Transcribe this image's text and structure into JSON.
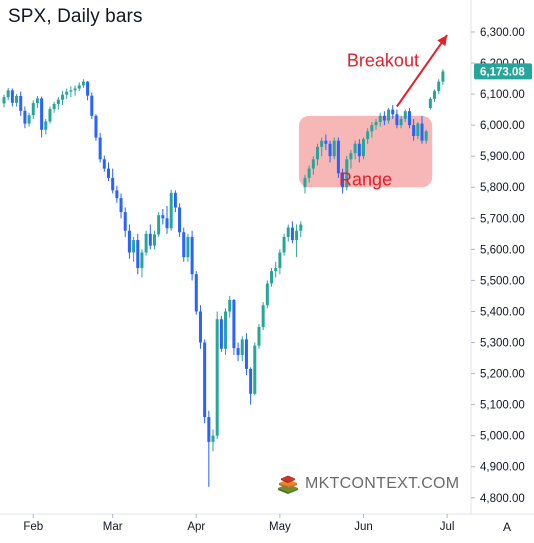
{
  "header": {
    "title": "SPX, Daily bars"
  },
  "brand": {
    "name": "MKTCONTEXT.COM"
  },
  "chart_data": {
    "type": "candlestick",
    "ylim": [
      4780,
      6345
    ],
    "y_ticks": [
      "4,800.00",
      "4,900.00",
      "5,000.00",
      "5,100.00",
      "5,200.00",
      "5,300.00",
      "5,400.00",
      "5,500.00",
      "5,600.00",
      "5,700.00",
      "5,800.00",
      "5,900.00",
      "6,000.00",
      "6,100.00",
      "6,200.00",
      "6,300.00"
    ],
    "x_ticks": [
      {
        "label": "Feb",
        "index": 7
      },
      {
        "label": "Mar",
        "index": 26
      },
      {
        "label": "Apr",
        "index": 46
      },
      {
        "label": "May",
        "index": 66
      },
      {
        "label": "Jun",
        "index": 86
      },
      {
        "label": "Jul",
        "index": 106
      }
    ],
    "last_price": {
      "label": "6,173.08",
      "value": 6173.08
    },
    "axis_button": "A",
    "annotations": {
      "range_label": "Range",
      "range_box": {
        "i0": 72,
        "i1": 101,
        "p_low": 5800,
        "p_high": 6030
      },
      "breakout_label": "Breakout",
      "breakout_arrow": {
        "from_i": 94,
        "from_p": 6060,
        "to_i": 106,
        "to_p": 6290
      }
    },
    "colors": {
      "up": "#26a69a",
      "down": "#2962ff",
      "range_fill": "#f6a3a3",
      "annotation": "#e5202a",
      "axis_text": "#131722",
      "grid": "#f0f3fa"
    },
    "ohlc": [
      [
        6070,
        6098,
        6057,
        6090
      ],
      [
        6090,
        6120,
        6080,
        6112
      ],
      [
        6112,
        6118,
        6060,
        6072
      ],
      [
        6072,
        6100,
        6060,
        6094
      ],
      [
        6094,
        6108,
        6030,
        6046
      ],
      [
        6046,
        6060,
        5990,
        6005
      ],
      [
        6005,
        6040,
        5995,
        6032
      ],
      [
        6032,
        6080,
        6020,
        6071
      ],
      [
        6071,
        6094,
        6055,
        6086
      ],
      [
        6086,
        6092,
        5960,
        5985
      ],
      [
        5985,
        6020,
        5970,
        6012
      ],
      [
        6012,
        6060,
        6005,
        6052
      ],
      [
        6052,
        6075,
        6040,
        6068
      ],
      [
        6068,
        6090,
        6050,
        6082
      ],
      [
        6082,
        6110,
        6065,
        6098
      ],
      [
        6098,
        6118,
        6085,
        6108
      ],
      [
        6108,
        6125,
        6090,
        6112
      ],
      [
        6112,
        6128,
        6095,
        6118
      ],
      [
        6118,
        6138,
        6110,
        6128
      ],
      [
        6128,
        6148,
        6120,
        6140
      ],
      [
        6140,
        6142,
        6080,
        6095
      ],
      [
        6095,
        6105,
        6020,
        6030
      ],
      [
        6030,
        6035,
        5950,
        5960
      ],
      [
        5960,
        5975,
        5880,
        5890
      ],
      [
        5890,
        5902,
        5850,
        5860
      ],
      [
        5860,
        5880,
        5820,
        5830
      ],
      [
        5830,
        5860,
        5780,
        5790
      ],
      [
        5790,
        5805,
        5750,
        5765
      ],
      [
        5765,
        5780,
        5700,
        5720
      ],
      [
        5720,
        5735,
        5640,
        5660
      ],
      [
        5660,
        5680,
        5570,
        5590
      ],
      [
        5590,
        5640,
        5560,
        5630
      ],
      [
        5630,
        5650,
        5520,
        5540
      ],
      [
        5540,
        5600,
        5510,
        5590
      ],
      [
        5590,
        5660,
        5580,
        5650
      ],
      [
        5650,
        5680,
        5600,
        5612
      ],
      [
        5612,
        5660,
        5600,
        5648
      ],
      [
        5648,
        5720,
        5640,
        5710
      ],
      [
        5710,
        5730,
        5680,
        5700
      ],
      [
        5700,
        5740,
        5650,
        5668
      ],
      [
        5668,
        5792,
        5660,
        5782
      ],
      [
        5782,
        5790,
        5720,
        5735
      ],
      [
        5735,
        5748,
        5640,
        5655
      ],
      [
        5655,
        5670,
        5560,
        5575
      ],
      [
        5575,
        5650,
        5560,
        5640
      ],
      [
        5640,
        5660,
        5500,
        5520
      ],
      [
        5520,
        5530,
        5390,
        5400
      ],
      [
        5400,
        5420,
        5280,
        5300
      ],
      [
        5300,
        5310,
        5040,
        5060
      ],
      [
        5060,
        5080,
        4835,
        4980
      ],
      [
        4980,
        5020,
        4950,
        5000
      ],
      [
        5000,
        5400,
        4990,
        5375
      ],
      [
        5375,
        5385,
        5270,
        5280
      ],
      [
        5280,
        5410,
        5260,
        5400
      ],
      [
        5400,
        5450,
        5380,
        5437
      ],
      [
        5437,
        5440,
        5260,
        5282
      ],
      [
        5282,
        5300,
        5240,
        5260
      ],
      [
        5260,
        5320,
        5240,
        5310
      ],
      [
        5310,
        5330,
        5195,
        5215
      ],
      [
        5215,
        5220,
        5100,
        5135
      ],
      [
        5135,
        5300,
        5130,
        5290
      ],
      [
        5290,
        5360,
        5280,
        5350
      ],
      [
        5350,
        5430,
        5340,
        5420
      ],
      [
        5420,
        5500,
        5410,
        5490
      ],
      [
        5490,
        5540,
        5480,
        5530
      ],
      [
        5530,
        5560,
        5510,
        5540
      ],
      [
        5540,
        5600,
        5520,
        5590
      ],
      [
        5590,
        5650,
        5580,
        5640
      ],
      [
        5640,
        5680,
        5625,
        5670
      ],
      [
        5670,
        5690,
        5620,
        5630
      ],
      [
        5630,
        5680,
        5575,
        5660
      ],
      [
        5660,
        5690,
        5640,
        5680
      ],
      [
        5800,
        5840,
        5780,
        5830
      ],
      [
        5830,
        5870,
        5815,
        5860
      ],
      [
        5860,
        5900,
        5840,
        5890
      ],
      [
        5890,
        5940,
        5870,
        5930
      ],
      [
        5930,
        5960,
        5900,
        5950
      ],
      [
        5950,
        5970,
        5920,
        5940
      ],
      [
        5940,
        5950,
        5880,
        5900
      ],
      [
        5900,
        5960,
        5890,
        5950
      ],
      [
        5950,
        5960,
        5830,
        5845
      ],
      [
        5845,
        5860,
        5780,
        5800
      ],
      [
        5800,
        5900,
        5790,
        5890
      ],
      [
        5890,
        5920,
        5860,
        5910
      ],
      [
        5910,
        5950,
        5890,
        5940
      ],
      [
        5940,
        5955,
        5880,
        5900
      ],
      [
        5900,
        5960,
        5890,
        5955
      ],
      [
        5955,
        5990,
        5940,
        5980
      ],
      [
        5980,
        6010,
        5960,
        6000
      ],
      [
        6000,
        6020,
        5985,
        6010
      ],
      [
        6010,
        6040,
        5995,
        6030
      ],
      [
        6030,
        6045,
        6000,
        6015
      ],
      [
        6015,
        6055,
        6005,
        6050
      ],
      [
        6050,
        6065,
        6020,
        6035
      ],
      [
        6035,
        6050,
        5990,
        6000
      ],
      [
        6000,
        6030,
        5990,
        6020
      ],
      [
        6020,
        6050,
        6010,
        6045
      ],
      [
        6045,
        6055,
        5990,
        6000
      ],
      [
        6000,
        6020,
        5950,
        5965
      ],
      [
        5965,
        6010,
        5955,
        6005
      ],
      [
        6005,
        6030,
        5940,
        5950
      ],
      [
        5950,
        5985,
        5940,
        5980
      ],
      [
        6055,
        6090,
        6050,
        6085
      ],
      [
        6085,
        6115,
        6075,
        6110
      ],
      [
        6110,
        6148,
        6100,
        6140
      ],
      [
        6140,
        6180,
        6130,
        6173
      ]
    ]
  }
}
